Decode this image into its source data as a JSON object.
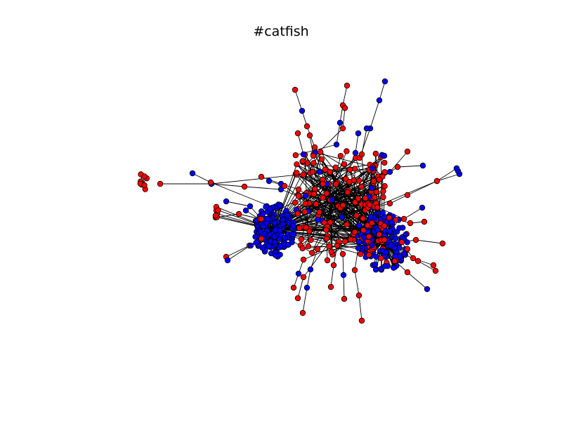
{
  "title": "#catfish",
  "colors": {
    "node_red": "#ff0000",
    "node_blue": "#0000ff",
    "node_outline": "#000000",
    "edge": "#000000",
    "background": "#ffffff"
  },
  "graph": {
    "type": "network",
    "layout": "force-directed",
    "node_classes": [
      "red",
      "blue"
    ],
    "approx_node_count": 520,
    "clusters": [
      {
        "name": "left-blue-cluster",
        "dominant_color": "blue"
      },
      {
        "name": "right-blue-cluster",
        "dominant_color": "blue"
      },
      {
        "name": "central-red-core",
        "dominant_color": "red"
      }
    ]
  }
}
